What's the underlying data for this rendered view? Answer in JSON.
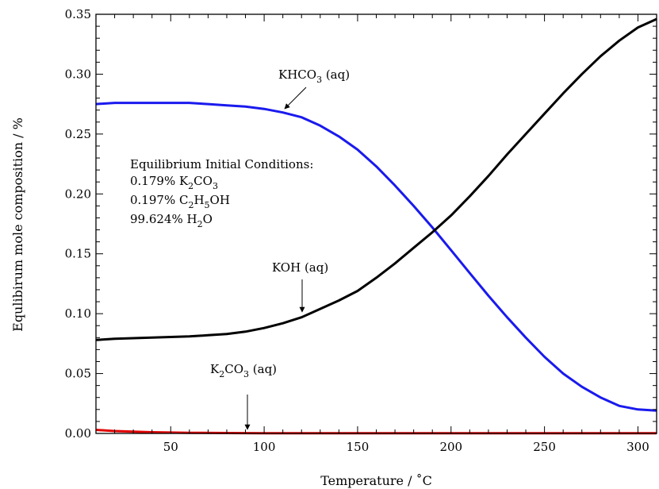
{
  "chart_data": {
    "type": "line",
    "xlabel": "Temperature / ˚C",
    "ylabel": "Equlibirum mole composition / %",
    "xlim": [
      10,
      310
    ],
    "ylim": [
      0,
      0.35
    ],
    "x_ticks": [
      50,
      100,
      150,
      200,
      250,
      300
    ],
    "y_ticks": [
      0.0,
      0.05,
      0.1,
      0.15,
      0.2,
      0.25,
      0.3,
      0.35
    ],
    "x_tick_labels": [
      "50",
      "100",
      "150",
      "200",
      "250",
      "300"
    ],
    "y_tick_labels": [
      "0.00",
      "0.05",
      "0.10",
      "0.15",
      "0.20",
      "0.25",
      "0.30",
      "0.35"
    ],
    "grid": false,
    "series": [
      {
        "name": "KHCO3 (aq)",
        "color": "#1a1aee",
        "x": [
          10,
          20,
          40,
          60,
          70,
          80,
          90,
          100,
          110,
          120,
          130,
          140,
          150,
          160,
          170,
          180,
          190,
          200,
          210,
          220,
          230,
          240,
          250,
          260,
          270,
          280,
          290,
          300,
          310
        ],
        "y": [
          0.275,
          0.276,
          0.276,
          0.276,
          0.275,
          0.274,
          0.273,
          0.271,
          0.268,
          0.264,
          0.257,
          0.248,
          0.237,
          0.223,
          0.207,
          0.19,
          0.172,
          0.153,
          0.134,
          0.115,
          0.097,
          0.08,
          0.064,
          0.05,
          0.039,
          0.03,
          0.023,
          0.02,
          0.019
        ]
      },
      {
        "name": "KOH (aq)",
        "color": "#000000",
        "x": [
          10,
          20,
          40,
          60,
          70,
          80,
          90,
          100,
          110,
          120,
          130,
          140,
          150,
          160,
          170,
          180,
          190,
          200,
          210,
          220,
          230,
          240,
          250,
          260,
          270,
          280,
          290,
          300,
          310
        ],
        "y": [
          0.078,
          0.079,
          0.08,
          0.081,
          0.082,
          0.083,
          0.085,
          0.088,
          0.092,
          0.097,
          0.104,
          0.111,
          0.119,
          0.13,
          0.142,
          0.155,
          0.168,
          0.182,
          0.198,
          0.215,
          0.233,
          0.25,
          0.267,
          0.284,
          0.3,
          0.315,
          0.328,
          0.339,
          0.346
        ]
      },
      {
        "name": "K2CO3 (aq)",
        "color": "#e00000",
        "x": [
          10,
          20,
          40,
          60,
          80,
          100,
          150,
          200,
          250,
          310
        ],
        "y": [
          0.003,
          0.002,
          0.001,
          0.0005,
          0.0003,
          0.0002,
          0.0001,
          0.0001,
          0.0001,
          0.0001
        ]
      }
    ],
    "annotations": {
      "khco3": {
        "main": "KHCO",
        "sub": "3",
        "suffix": " (aq)",
        "arrow_to": [
          102,
          0.262
        ]
      },
      "koh": {
        "text": "KOH (aq)",
        "arrow_to": [
          121,
          0.098
        ]
      },
      "k2co3": {
        "pre": "K",
        "sub1": "2",
        "mid": "CO",
        "sub2": "3",
        "suffix": " (aq)",
        "arrow_to": [
          90,
          0.002
        ]
      },
      "conditions": {
        "title": "Equilibrium Initial Conditions:",
        "line1": {
          "pre": "0.179% K",
          "sub1": "2",
          "mid": "CO",
          "sub2": "3"
        },
        "line2": {
          "pre": "0.197% C",
          "sub1": "2",
          "mid": "H",
          "sub2": "5",
          "post": "OH"
        },
        "line3": {
          "pre": "99.624% H",
          "sub1": "2",
          "post": "O"
        }
      }
    }
  }
}
